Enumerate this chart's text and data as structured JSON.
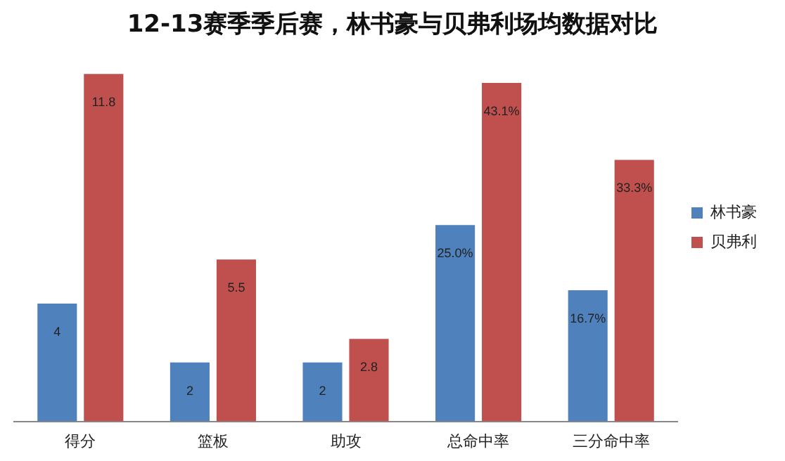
{
  "chart_data": {
    "type": "bar",
    "title": "12-13赛季季后赛，林书豪与贝弗利场均数据对比",
    "categories": [
      "得分",
      "篮板",
      "助攻",
      "总命中率",
      "三分命中率"
    ],
    "series": [
      {
        "name": "林书豪",
        "color": "#4f81bd",
        "values": [
          4,
          2,
          2,
          null,
          null
        ],
        "value_labels": [
          "4",
          "2",
          "2",
          null,
          null
        ]
      },
      {
        "name": "贝弗利",
        "color": "#c0504d",
        "values": [
          11.8,
          5.5,
          2.8,
          null,
          null
        ],
        "value_labels": [
          "11.8",
          "5.5",
          "2.8",
          null,
          null
        ]
      },
      {
        "color": "#4f81bd",
        "axis": "y2",
        "values": [
          null,
          null,
          null,
          25.0,
          16.7
        ],
        "value_labels": [
          null,
          null,
          null,
          "25.0%",
          "16.7%"
        ]
      },
      {
        "color": "#c0504d",
        "axis": "y2",
        "values": [
          null,
          null,
          null,
          43.1,
          33.3
        ],
        "value_labels": [
          null,
          null,
          null,
          "43.1%",
          "33.3%"
        ]
      }
    ],
    "grid": false,
    "legend": "right",
    "tick_labels": "x"
  }
}
